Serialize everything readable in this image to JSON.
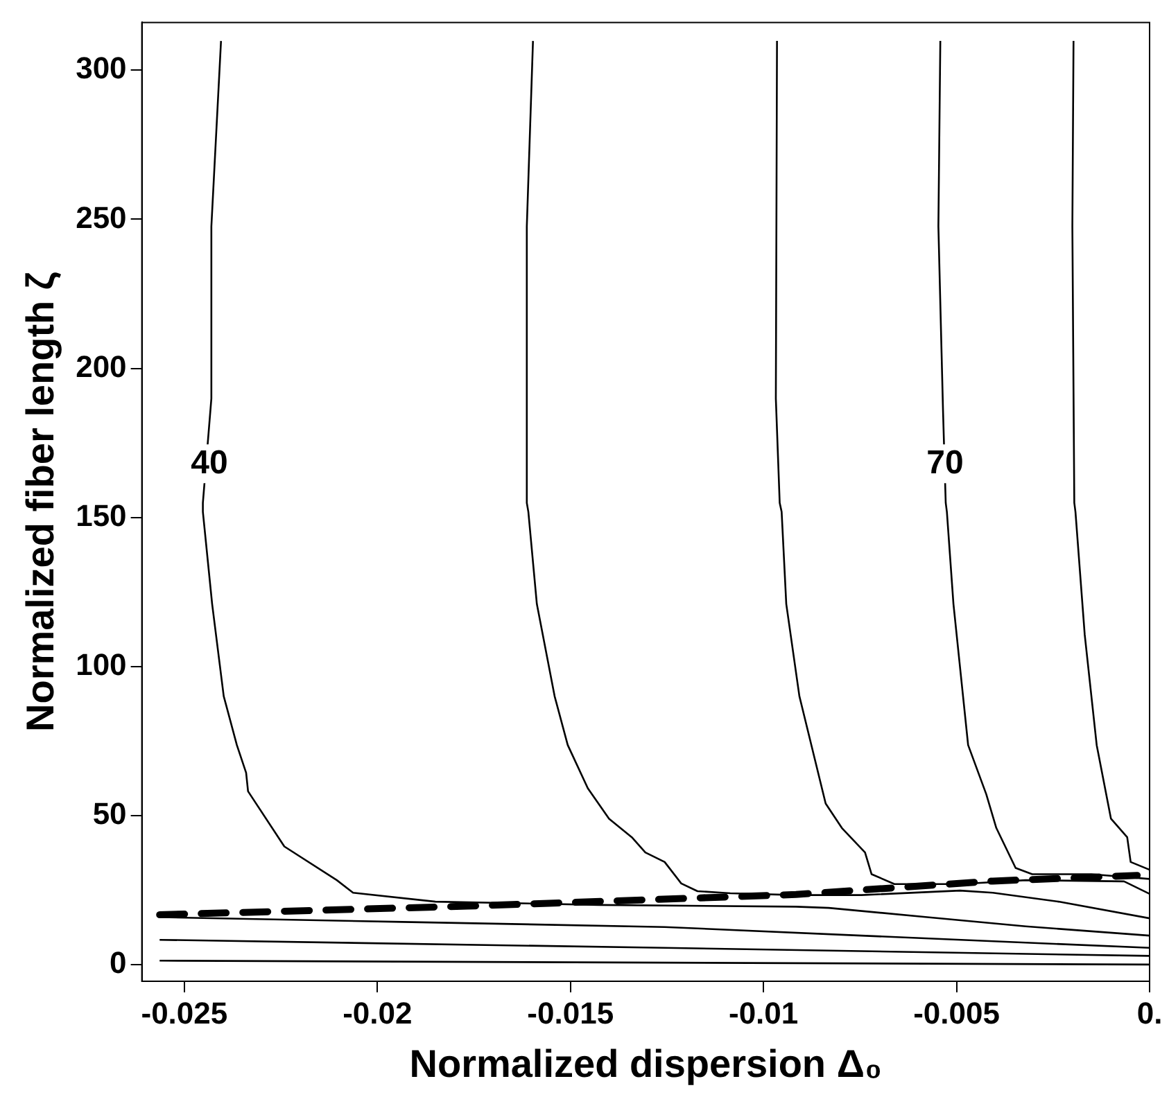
{
  "chart_data": {
    "type": "line",
    "xlabel": "Normalized dispersion Δ₀",
    "ylabel": "Normalized fiber length ζ",
    "xlim": [
      -0.0261,
      0
    ],
    "ylim": [
      -5.5,
      316
    ],
    "xticks": [
      -0.025,
      -0.02,
      -0.015,
      -0.01,
      -0.005,
      {
        "value": 0,
        "label": "0."
      }
    ],
    "yticks": [
      0,
      50,
      100,
      150,
      200,
      250,
      300
    ],
    "grid": false,
    "legend": false,
    "marker": "none",
    "series": [
      {
        "color": "#000000",
        "x": [
          -0.02405,
          -0.0243,
          -0.0243,
          -0.02452,
          -0.02452,
          -0.02428,
          -0.02398,
          -0.02364,
          -0.0234,
          -0.02335,
          -0.02241,
          -0.02105,
          -0.02063,
          -0.0185,
          -0.01426,
          -0.00916,
          -0.00831,
          -0.00576,
          -0.00321,
          0
        ],
        "values": [
          309.8,
          247.6,
          189.9,
          154.9,
          151.9,
          121,
          90.1,
          73.7,
          64.4,
          58.2,
          39.7,
          28.4,
          24.2,
          21.2,
          20.1,
          19.5,
          19.1,
          16,
          12.9,
          9.8
        ]
      },
      {
        "color": "#000000",
        "x": [
          -0.01597,
          -0.01613,
          -0.01613,
          -0.01609,
          -0.01587,
          -0.01541,
          -0.01507,
          -0.01455,
          -0.014,
          -0.01341,
          -0.01306,
          -0.01256,
          -0.01213,
          -0.01171,
          -0.01086,
          -0.00916,
          -0.00746,
          -0.00491,
          -0.00406,
          -0.00236,
          0
        ],
        "values": [
          309.8,
          247.6,
          154.9,
          151.9,
          121,
          90.1,
          73.7,
          59.2,
          49,
          42.8,
          37.7,
          34.5,
          27.3,
          24.7,
          24,
          23.4,
          23.4,
          24.9,
          24.2,
          21.2,
          15.6
        ]
      },
      {
        "color": "#000000",
        "x": [
          -0.00965,
          -0.00968,
          -0.00958,
          -0.00953,
          -0.00941,
          -0.00907,
          -0.00839,
          -0.00797,
          -0.00737,
          -0.0072,
          -0.00661,
          -0.00491,
          -0.00321,
          -0.00066,
          0
        ],
        "values": [
          309.8,
          189.9,
          154.9,
          151.9,
          121,
          90.1,
          54.1,
          45.9,
          37.7,
          30.4,
          27.1,
          27.1,
          28.4,
          28,
          23.8
        ]
      },
      {
        "color": "#000000",
        "x": [
          -0.00542,
          -0.00547,
          -0.00535,
          -0.00528,
          -0.00525,
          -0.00508,
          -0.0047,
          -0.00423,
          -0.00397,
          -0.00347,
          -0.00304,
          -0.00151,
          0
        ],
        "values": [
          309.8,
          247.6,
          185.8,
          154.9,
          151.9,
          121,
          73.7,
          57.2,
          45.9,
          32.5,
          30.4,
          30.4,
          28.8
        ]
      },
      {
        "color": "#000000",
        "x": [
          -0.00197,
          -0.002,
          -0.00195,
          -0.00192,
          -0.00168,
          -0.00137,
          -0.001,
          -0.00058,
          -0.00049,
          0
        ],
        "values": [
          309.8,
          247.6,
          154.9,
          151.9,
          110.7,
          73.7,
          49,
          42.8,
          34.5,
          31.9
        ]
      },
      {
        "color": "#000000",
        "x": [
          -0.02564,
          -0.01935,
          -0.01256,
          -0.00746,
          0
        ],
        "values": [
          16,
          14.4,
          12.7,
          9.8,
          5.7
        ]
      },
      {
        "color": "#000000",
        "x": [
          -0.02564,
          -0.01256,
          0
        ],
        "values": [
          8.4,
          5.7,
          3
        ]
      },
      {
        "color": "#000000",
        "x": [
          -0.02564,
          0
        ],
        "values": [
          1.4,
          0.1
        ]
      },
      {
        "color": "#000000",
        "line_style": "dashed",
        "x": [
          -0.02564,
          -0.01766,
          -0.00916,
          -0.00406,
          -0.00032
        ],
        "values": [
          16.8,
          19.7,
          23.6,
          28.1,
          30
        ]
      }
    ],
    "annotations": [
      {
        "text": "40",
        "x": -0.02435,
        "y": 168
      },
      {
        "text": "70",
        "x": -0.0053,
        "y": 168
      }
    ]
  }
}
